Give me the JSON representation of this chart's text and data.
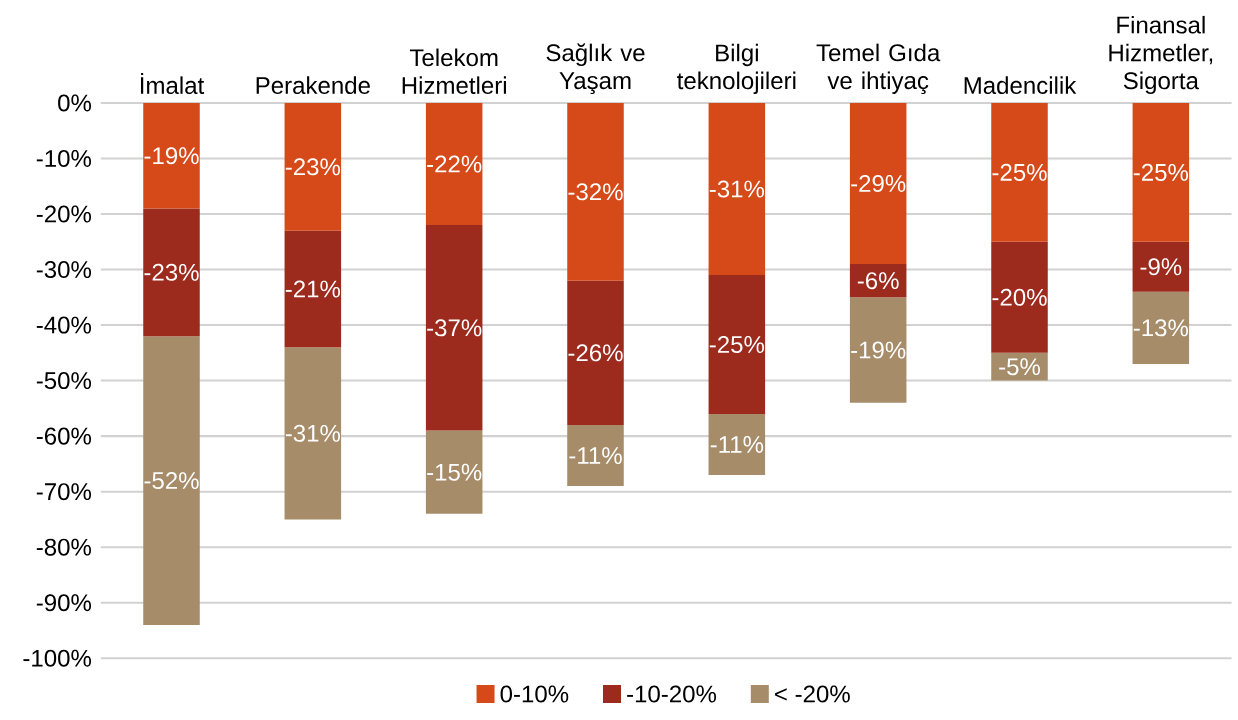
{
  "chart_data": {
    "type": "bar",
    "stacked": true,
    "categories": [
      "İmalat",
      "Perakende",
      "Telekom Hizmetleri",
      "Sağlık ve Yaşam",
      "Bilgi teknolojileri",
      "Temel Gıda ve ihtiyaç",
      "Madencilik",
      "Finansal Hizmetler, Sigorta"
    ],
    "series": [
      {
        "name": "0-10%",
        "color": "#d64a1a",
        "values": [
          -19,
          -23,
          -22,
          -32,
          -31,
          -29,
          -25,
          -25
        ],
        "value_labels": [
          "-19%",
          "-23%",
          "-22%",
          "-32%",
          "-31%",
          "-29%",
          "-25%",
          "-25%"
        ]
      },
      {
        "name": "-10-20%",
        "color": "#9c2b1e",
        "values": [
          -23,
          -21,
          -37,
          -26,
          -25,
          -6,
          -20,
          -9
        ],
        "value_labels": [
          "-23%",
          "-21%",
          "-37%",
          "-26%",
          "-25%",
          "-6%",
          "-20%",
          "-9%"
        ]
      },
      {
        "name": "< -20%",
        "color": "#a68c69",
        "values": [
          -52,
          -31,
          -15,
          -11,
          -11,
          -19,
          -5,
          -13
        ],
        "value_labels": [
          "-52%",
          "-31%",
          "-15%",
          "-11%",
          "-11%",
          "-19%",
          "-5%",
          "-13%"
        ]
      }
    ],
    "ylim": [
      -100,
      0
    ],
    "yticks": [
      {
        "value": 0,
        "label": "0%"
      },
      {
        "value": -10,
        "label": "-10%"
      },
      {
        "value": -20,
        "label": "-20%"
      },
      {
        "value": -30,
        "label": "-30%"
      },
      {
        "value": -40,
        "label": "-40%"
      },
      {
        "value": -50,
        "label": "-50%"
      },
      {
        "value": -60,
        "label": "-60%"
      },
      {
        "value": -70,
        "label": "-70%"
      },
      {
        "value": -80,
        "label": "-80%"
      },
      {
        "value": -90,
        "label": "-90%"
      },
      {
        "value": -100,
        "label": "-100%"
      }
    ],
    "grid": "y",
    "legend": "bottom"
  }
}
